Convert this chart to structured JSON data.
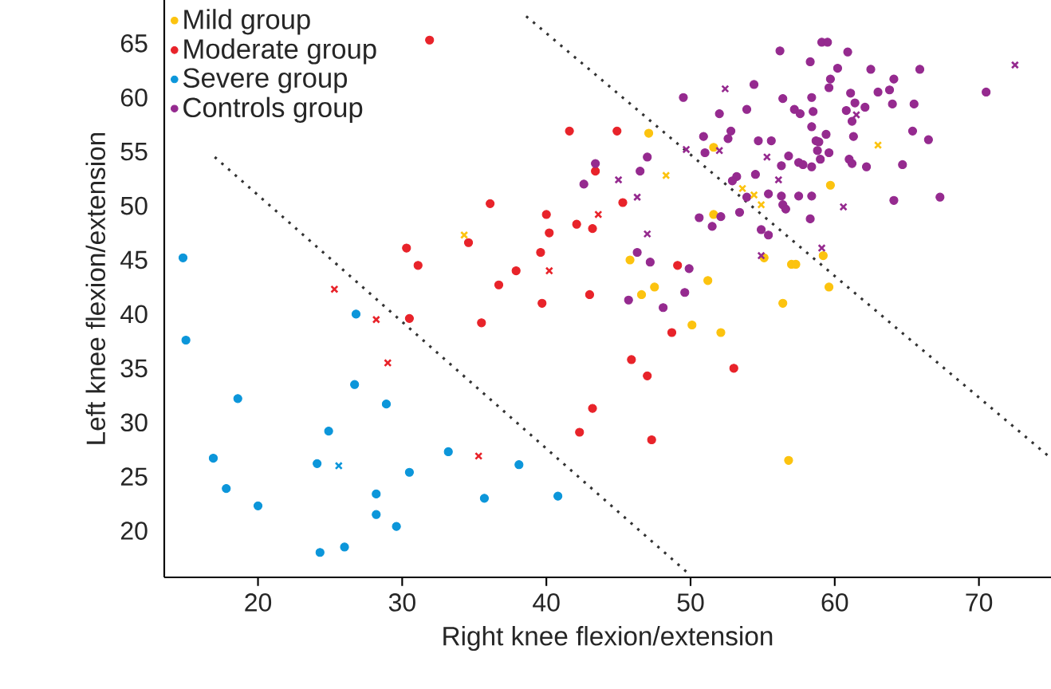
{
  "chart_data": {
    "type": "scatter",
    "xlabel": "Right knee flexion/extension",
    "ylabel": "Left knee flexion/extension",
    "xlim": [
      13.5,
      75
    ],
    "ylim": [
      15.7,
      69
    ],
    "xticks": [
      20,
      30,
      40,
      50,
      60,
      70
    ],
    "yticks": [
      20,
      25,
      30,
      35,
      40,
      45,
      50,
      55,
      60,
      65
    ],
    "legend": "top left",
    "grid": false,
    "series": [
      {
        "name": "Mild group",
        "color": "#fcc30f",
        "marker": "circle",
        "x": [
          47.1,
          51.6,
          51.6,
          45.8,
          51.2,
          47.5,
          46.6,
          55.1,
          56.4,
          50.1,
          52.1,
          59.7,
          57.0,
          57.3,
          59.2,
          59.6,
          56.8
        ],
        "values": [
          56.7,
          55.4,
          49.2,
          45.0,
          43.1,
          42.5,
          41.8,
          45.2,
          41.0,
          39.0,
          38.3,
          51.9,
          44.6,
          44.6,
          45.4,
          42.5,
          26.5
        ]
      },
      {
        "name": "Moderate group",
        "color": "#e8232a",
        "marker": "circle",
        "x": [
          41.6,
          44.9,
          43.4,
          36.1,
          40.0,
          45.3,
          40.2,
          42.1,
          43.2,
          34.6,
          39.6,
          37.9,
          36.7,
          43.0,
          39.7,
          49.1,
          31.9,
          30.3,
          31.1,
          30.5,
          35.5,
          48.7,
          45.9,
          47.0,
          53.0,
          43.2,
          42.3,
          47.3
        ],
        "values": [
          56.9,
          56.9,
          53.2,
          50.2,
          49.2,
          50.3,
          47.5,
          48.3,
          47.9,
          46.6,
          45.7,
          44.0,
          42.7,
          41.8,
          41.0,
          44.5,
          65.3,
          46.1,
          44.5,
          39.6,
          39.2,
          38.3,
          35.8,
          34.3,
          35.0,
          31.3,
          29.1,
          28.4
        ]
      },
      {
        "name": "Severe group",
        "color": "#0c96da",
        "marker": "circle",
        "x": [
          14.8,
          15.0,
          18.6,
          16.9,
          17.8,
          20.0,
          26.8,
          26.7,
          28.9,
          24.9,
          24.1,
          30.5,
          33.2,
          28.2,
          28.2,
          29.6,
          26.0,
          24.3,
          35.7,
          38.1,
          40.8
        ],
        "values": [
          45.2,
          37.6,
          32.2,
          26.7,
          23.9,
          22.3,
          40.0,
          33.5,
          31.7,
          29.2,
          26.2,
          25.4,
          27.3,
          23.4,
          21.5,
          20.4,
          18.5,
          18.0,
          23.0,
          26.1,
          23.2
        ]
      },
      {
        "name": "Controls group",
        "color": "#952a8f",
        "marker": "circle",
        "x": [
          43.4,
          42.6,
          46.5,
          47.0,
          49.5,
          52.0,
          53.9,
          54.4,
          56.2,
          52.8,
          52.6,
          50.9,
          51.0,
          53.2,
          52.9,
          54.5,
          55.6,
          54.7,
          53.9,
          53.4,
          52.1,
          50.6,
          51.5,
          55.4,
          54.9,
          55.4,
          46.3,
          47.2,
          49.9,
          49.6,
          45.7,
          48.1,
          59.1,
          59.5,
          60.9,
          58.3,
          60.2,
          62.5,
          65.9,
          59.7,
          64.1,
          59.6,
          56.4,
          58.4,
          61.1,
          63.0,
          63.8,
          61.4,
          62.1,
          64.0,
          65.5,
          57.2,
          57.6,
          58.5,
          60.8,
          61.2,
          58.4,
          59.4,
          61.3,
          65.4,
          66.5,
          58.7,
          58.9,
          58.8,
          59.6,
          56.8,
          59.0,
          61.0,
          61.2,
          57.5,
          57.8,
          58.4,
          56.3,
          62.2,
          64.7,
          56.3,
          57.5,
          58.4,
          56.4,
          56.6,
          58.3,
          64.1,
          67.3,
          70.5
        ],
        "values": [
          53.9,
          52.0,
          53.2,
          54.5,
          60.0,
          58.5,
          58.9,
          61.2,
          64.3,
          56.9,
          56.2,
          56.4,
          54.9,
          52.7,
          52.3,
          52.9,
          56.0,
          56.0,
          50.8,
          49.4,
          49.0,
          48.9,
          48.1,
          51.1,
          47.8,
          47.3,
          45.7,
          44.8,
          44.2,
          42.0,
          41.3,
          40.6,
          65.1,
          65.1,
          64.2,
          63.3,
          62.7,
          62.6,
          62.6,
          61.7,
          61.7,
          60.9,
          59.9,
          60.0,
          60.4,
          60.5,
          60.7,
          59.5,
          59.1,
          59.4,
          59.4,
          58.9,
          58.5,
          58.7,
          58.8,
          57.8,
          57.3,
          56.6,
          56.4,
          56.9,
          56.1,
          56.0,
          55.9,
          55.1,
          54.9,
          54.6,
          54.3,
          54.3,
          53.9,
          54.0,
          53.8,
          53.6,
          53.7,
          53.6,
          53.8,
          50.9,
          50.9,
          50.9,
          50.1,
          49.7,
          48.8,
          50.5,
          50.8,
          60.5
        ]
      },
      {
        "color": "#fcc30f",
        "marker": "cross",
        "x": [
          34.3,
          48.3,
          53.6,
          54.4,
          54.9,
          63.0
        ],
        "values": [
          47.3,
          52.8,
          51.6,
          51.0,
          50.1,
          55.6
        ]
      },
      {
        "color": "#e8232a",
        "marker": "cross",
        "x": [
          43.6,
          40.2,
          25.3,
          28.2,
          29.0,
          35.3
        ],
        "values": [
          49.2,
          44.0,
          42.3,
          39.5,
          35.5,
          26.9
        ]
      },
      {
        "color": "#0c96da",
        "marker": "cross",
        "x": [
          25.6
        ],
        "values": [
          26.0
        ]
      },
      {
        "color": "#952a8f",
        "marker": "cross",
        "x": [
          52.4,
          52.0,
          49.7,
          55.3,
          45.0,
          46.3,
          47.0,
          54.9,
          56.1,
          72.5,
          61.5,
          60.6,
          59.1
        ],
        "values": [
          60.8,
          55.1,
          55.2,
          54.5,
          52.4,
          50.8,
          47.4,
          45.4,
          52.4,
          63.0,
          58.4,
          49.9,
          46.1
        ]
      },
      {
        "type": "line",
        "color": "#333333",
        "marker": "none",
        "line_style": "dotted",
        "x": [
          17.0,
          49.9
        ],
        "values": [
          54.5,
          16.0
        ]
      },
      {
        "type": "line",
        "color": "#333333",
        "marker": "none",
        "line_style": "dotted",
        "x": [
          38.6,
          75.0
        ],
        "values": [
          67.5,
          26.7
        ]
      }
    ]
  }
}
